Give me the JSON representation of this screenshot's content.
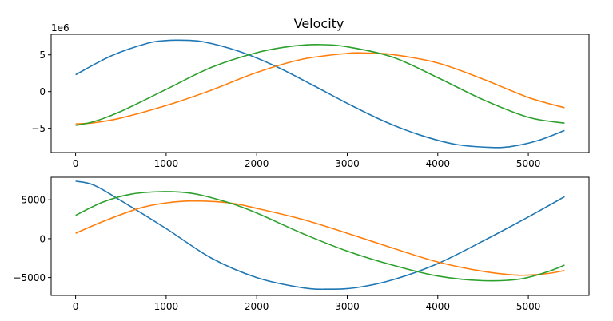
{
  "chart_data": [
    {
      "type": "line",
      "title": "Velocity",
      "y_offset_text": "1e6",
      "xlabel": "",
      "ylabel": "",
      "xlim": [
        -270,
        5670
      ],
      "ylim": [
        -8300000,
        7800000
      ],
      "xticks": [
        0,
        1000,
        2000,
        3000,
        4000,
        5000
      ],
      "xtick_labels": [
        "0",
        "1000",
        "2000",
        "3000",
        "4000",
        "5000"
      ],
      "yticks": [
        -5000000,
        0,
        5000000
      ],
      "ytick_labels": [
        "−5",
        "0",
        "5"
      ],
      "grid": false,
      "series": [
        {
          "color": "#1f77b4",
          "x": [
            0,
            400,
            800,
            1000,
            1150,
            1400,
            1800,
            2200,
            2600,
            3000,
            3400,
            3800,
            4200,
            4575,
            4800,
            5100,
            5400
          ],
          "y": [
            2300000,
            4900000,
            6600000,
            6950000,
            7000000,
            6800000,
            5500000,
            3500000,
            1000000,
            -1600000,
            -4000000,
            -5900000,
            -7200000,
            -7600000,
            -7500000,
            -6700000,
            -5300000
          ]
        },
        {
          "color": "#ff7f0e",
          "x": [
            0,
            200,
            500,
            1000,
            1500,
            2000,
            2500,
            3000,
            3200,
            3500,
            4000,
            4500,
            5000,
            5400
          ],
          "y": [
            -4400000,
            -4250000,
            -3600000,
            -1900000,
            200000,
            2600000,
            4400000,
            5200000,
            5250000,
            5050000,
            3900000,
            1700000,
            -800000,
            -2200000
          ]
        },
        {
          "color": "#2ca02c",
          "x": [
            0,
            200,
            500,
            1000,
            1500,
            2000,
            2400,
            2700,
            3000,
            3500,
            4000,
            4500,
            5000,
            5400
          ],
          "y": [
            -4600000,
            -4100000,
            -2700000,
            300000,
            3300000,
            5300000,
            6200000,
            6400000,
            6100000,
            4700000,
            1900000,
            -1100000,
            -3500000,
            -4300000
          ]
        }
      ]
    },
    {
      "type": "line",
      "title": "",
      "xlabel": "",
      "ylabel": "",
      "xlim": [
        -270,
        5670
      ],
      "ylim": [
        -7300,
        7900
      ],
      "xticks": [
        0,
        1000,
        2000,
        3000,
        4000,
        5000
      ],
      "xtick_labels": [
        "0",
        "1000",
        "2000",
        "3000",
        "4000",
        "5000"
      ],
      "yticks": [
        -5000,
        0,
        5000
      ],
      "ytick_labels": [
        "−5000",
        "0",
        "5000"
      ],
      "grid": false,
      "series": [
        {
          "color": "#1f77b4",
          "x": [
            0,
            200,
            500,
            1000,
            1500,
            2000,
            2500,
            2800,
            3100,
            3500,
            4000,
            4500,
            5000,
            5400
          ],
          "y": [
            7400,
            6900,
            4900,
            1300,
            -2500,
            -5000,
            -6300,
            -6500,
            -6300,
            -5300,
            -3200,
            -300,
            2800,
            5400
          ]
        },
        {
          "color": "#ff7f0e",
          "x": [
            0,
            300,
            700,
            1000,
            1300,
            1700,
            2000,
            2500,
            3000,
            3500,
            4000,
            4500,
            4900,
            5200,
            5400
          ],
          "y": [
            700,
            2200,
            3900,
            4600,
            4850,
            4600,
            3900,
            2500,
            700,
            -1200,
            -3000,
            -4200,
            -4700,
            -4500,
            -4100
          ]
        },
        {
          "color": "#2ca02c",
          "x": [
            0,
            300,
            600,
            950,
            1300,
            1700,
            2000,
            2500,
            3000,
            3500,
            4000,
            4500,
            4900,
            5200,
            5400
          ],
          "y": [
            3000,
            4700,
            5700,
            6050,
            5800,
            4600,
            3300,
            700,
            -1600,
            -3400,
            -4800,
            -5400,
            -5200,
            -4300,
            -3400
          ]
        }
      ]
    }
  ]
}
